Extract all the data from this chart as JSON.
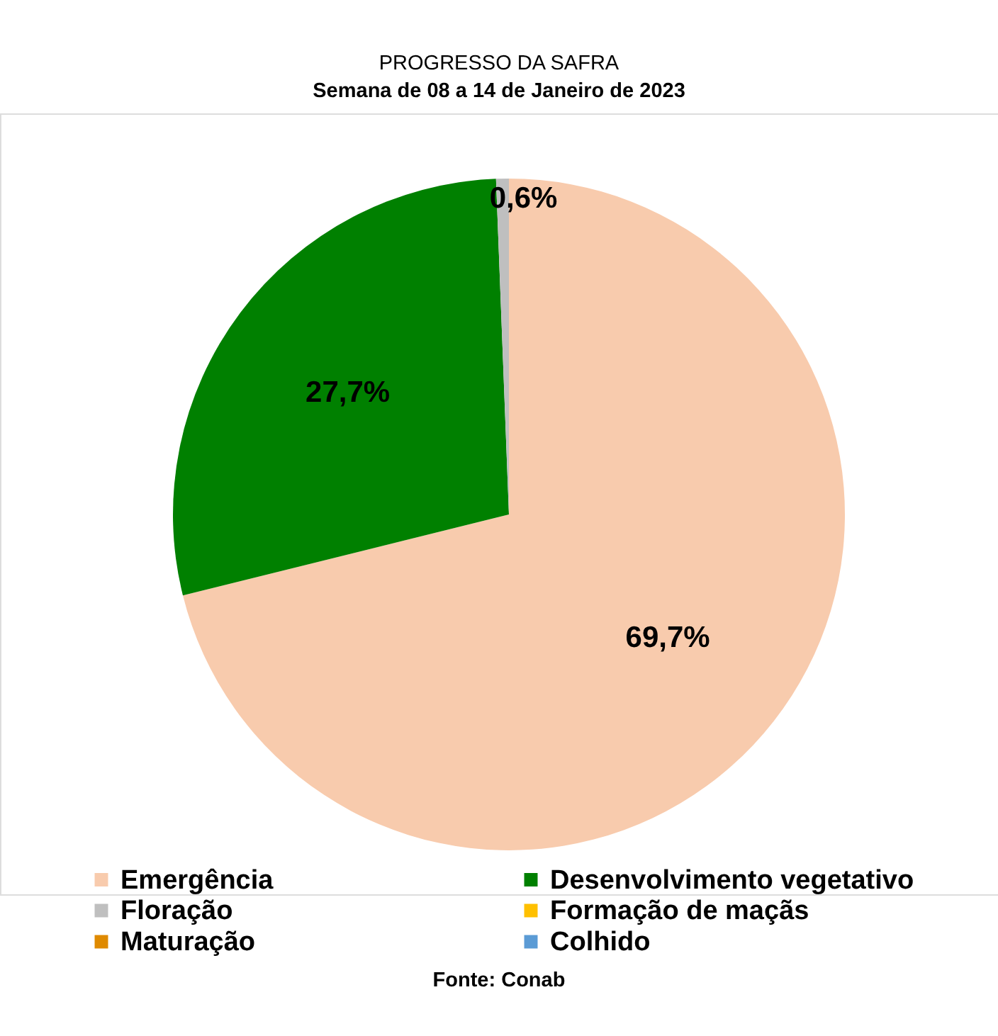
{
  "chart_data": {
    "type": "pie",
    "title": "PROGRESSO DA SAFRA",
    "subtitle": "Semana de 08 a 14 de Janeiro de 2023",
    "categories": [
      "Emergência",
      "Desenvolvimento vegetativo",
      "Floração",
      "Formação de maçãs",
      "Maturação",
      "Colhido"
    ],
    "values": [
      69.7,
      27.7,
      0.6,
      0,
      0,
      0
    ],
    "colors": [
      "#f8cbad",
      "#008000",
      "#bfbfbf",
      "#ffc000",
      "#df8a00",
      "#5b9bd5"
    ],
    "value_labels": [
      "69,7%",
      "27,7%",
      "0,6%",
      null,
      null,
      null
    ],
    "legend": "bottom",
    "annotations": [
      "Fonte: Conab"
    ]
  }
}
